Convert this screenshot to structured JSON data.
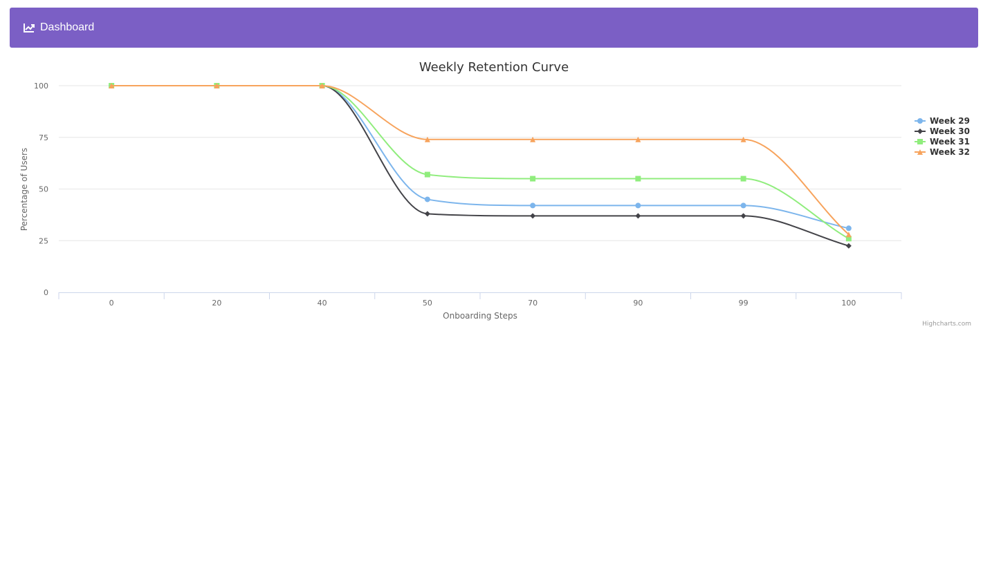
{
  "navbar": {
    "brand_label": "Dashboard",
    "brand_icon": "line-chart-icon",
    "background": "#7b5fc5"
  },
  "chart_data": {
    "type": "line",
    "title": "Weekly Retention Curve",
    "xlabel": "Onboarding Steps",
    "ylabel": "Percentage of Users",
    "categories": [
      "0",
      "20",
      "40",
      "50",
      "70",
      "90",
      "99",
      "100"
    ],
    "ylim": [
      0,
      100
    ],
    "yticks": [
      0,
      25,
      50,
      75,
      100
    ],
    "grid": true,
    "legend_position": "right",
    "series": [
      {
        "name": "Week 29",
        "color": "#7cb5ec",
        "marker": "circle",
        "values": [
          100,
          100,
          100,
          45,
          42,
          42,
          42,
          31
        ]
      },
      {
        "name": "Week 30",
        "color": "#434348",
        "marker": "diamond",
        "values": [
          100,
          100,
          100,
          38,
          37,
          37,
          37,
          22.5
        ]
      },
      {
        "name": "Week 31",
        "color": "#90ed7d",
        "marker": "square",
        "values": [
          100,
          100,
          100,
          57,
          55,
          55,
          55,
          26
        ]
      },
      {
        "name": "Week 32",
        "color": "#f7a35c",
        "marker": "triangle",
        "values": [
          100,
          100,
          100,
          74,
          74,
          74,
          74,
          28
        ]
      }
    ],
    "credits": "Highcharts.com"
  }
}
